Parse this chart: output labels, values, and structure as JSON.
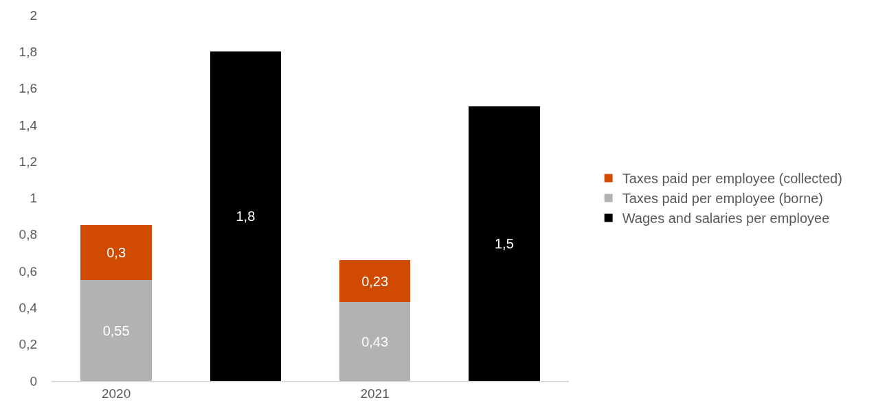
{
  "chart_data": {
    "type": "bar",
    "stacked": true,
    "categories": [
      "2020",
      null,
      "2021",
      null
    ],
    "series": [
      {
        "name": "Taxes paid per employee (borne)",
        "color": "#b2b2b2",
        "values": [
          0.55,
          null,
          0.43,
          null
        ],
        "value_labels": [
          "0,55",
          null,
          "0,43",
          null
        ]
      },
      {
        "name": "Taxes paid per employee (collected)",
        "color": "#d04a02",
        "values": [
          0.3,
          null,
          0.23,
          null
        ],
        "value_labels": [
          "0,3",
          null,
          "0,23",
          null
        ]
      },
      {
        "name": "Wages and salaries per employee",
        "color": "#000000",
        "values": [
          null,
          1.8,
          null,
          1.5
        ],
        "value_labels": [
          null,
          "1,8",
          null,
          "1,5"
        ]
      }
    ],
    "ylim": [
      0,
      2
    ],
    "yticks": [
      0,
      {
        "value": 0.2,
        "label": "0,2"
      },
      {
        "value": 0.4,
        "label": "0,4"
      },
      {
        "value": 0.6,
        "label": "0,6"
      },
      {
        "value": 0.8,
        "label": "0,8"
      },
      1,
      {
        "value": 1.2,
        "label": "1,2"
      },
      {
        "value": 1.4,
        "label": "1,4"
      },
      {
        "value": 1.6,
        "label": "1,6"
      },
      {
        "value": 1.8,
        "label": "1,8"
      },
      2
    ],
    "legend": "right"
  }
}
